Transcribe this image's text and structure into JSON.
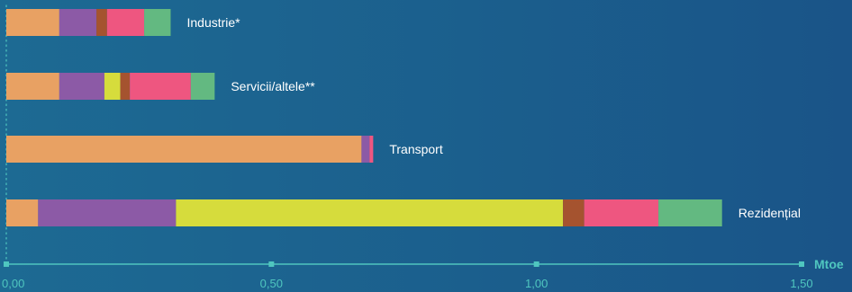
{
  "chart_data": {
    "type": "bar",
    "orientation": "horizontal",
    "stacked": true,
    "unit": "Mtoe",
    "xlim": [
      0,
      1.5
    ],
    "ticks": [
      {
        "value": 0,
        "label": "0,00"
      },
      {
        "value": 0.5,
        "label": "0,50"
      },
      {
        "value": 1.0,
        "label": "1,00"
      },
      {
        "value": 1.5,
        "label": "1,50"
      }
    ],
    "categories": [
      "Industrie*",
      "Servicii/altele**",
      "Transport",
      "Rezidențial"
    ],
    "series": [
      {
        "color": "#e8a163",
        "values": [
          0.1,
          0.1,
          0.67,
          0.06
        ]
      },
      {
        "color": "#8c5aa6",
        "values": [
          0.07,
          0.085,
          0.015,
          0.26
        ]
      },
      {
        "color": "#d6dc3c",
        "values": [
          0,
          0.03,
          0,
          0.73
        ]
      },
      {
        "color": "#a5532f",
        "values": [
          0.02,
          0.018,
          0,
          0.04
        ]
      },
      {
        "color": "#ee5680",
        "values": [
          0.07,
          0.115,
          0.007,
          0.14
        ]
      },
      {
        "color": "#63b981",
        "values": [
          0.05,
          0.045,
          0,
          0.12
        ]
      }
    ],
    "grid": false,
    "legend": "none"
  }
}
